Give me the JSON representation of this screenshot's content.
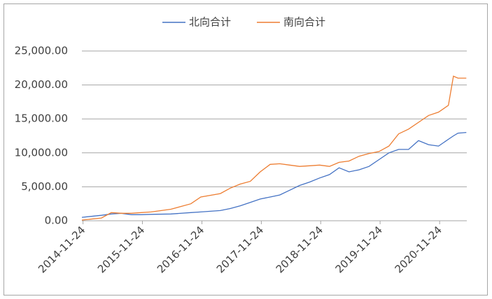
{
  "chart_data": {
    "type": "line",
    "x": [
      "2014-11-17",
      "2015-03-17",
      "2015-05-17",
      "2015-07-17",
      "2015-09-17",
      "2015-11-17",
      "2016-01-17",
      "2016-05-17",
      "2016-09-17",
      "2016-11-17",
      "2017-03-17",
      "2017-05-17",
      "2017-07-17",
      "2017-09-17",
      "2017-11-17",
      "2018-01-17",
      "2018-03-17",
      "2018-05-17",
      "2018-07-17",
      "2018-09-17",
      "2018-11-17",
      "2019-01-17",
      "2019-03-17",
      "2019-05-17",
      "2019-07-17",
      "2019-09-17",
      "2019-11-17",
      "2020-01-17",
      "2020-03-17",
      "2020-05-17",
      "2020-07-17",
      "2020-09-17",
      "2020-11-17",
      "2021-01-17",
      "2021-02-17",
      "2021-03-17",
      "2021-05-07"
    ],
    "series": [
      {
        "name": "北向合计",
        "color": "#4472c4",
        "values": [
          500,
          800,
          1000,
          1100,
          900,
          900,
          950,
          1000,
          1200,
          1300,
          1500,
          1800,
          2200,
          2700,
          3200,
          3500,
          3800,
          4500,
          5200,
          5700,
          6300,
          6800,
          7800,
          7200,
          7500,
          8000,
          9000,
          10000,
          10500,
          10500,
          11800,
          11200,
          11000,
          12000,
          12500,
          12900,
          13000
        ]
      },
      {
        "name": "南向合计",
        "color": "#ed7d31",
        "values": [
          100,
          400,
          1200,
          1100,
          1100,
          1200,
          1300,
          1700,
          2500,
          3500,
          4000,
          4800,
          5400,
          5800,
          7200,
          8300,
          8400,
          8200,
          8000,
          8100,
          8200,
          8000,
          8600,
          8800,
          9500,
          9900,
          10200,
          11000,
          12800,
          13500,
          14500,
          15500,
          16000,
          17000,
          21300,
          21000,
          21000
        ]
      }
    ],
    "xlim": [
      "2014-11-17",
      "2021-05-10"
    ],
    "xticks": [
      "2014-11-24",
      "2015-11-24",
      "2016-11-24",
      "2017-11-24",
      "2018-11-24",
      "2019-11-24",
      "2020-11-24"
    ],
    "ylim": [
      0,
      25000
    ],
    "yticks": [
      {
        "value": 0,
        "label": "0.00"
      },
      {
        "value": 5000,
        "label": "5,000.00"
      },
      {
        "value": 10000,
        "label": "10,000.00"
      },
      {
        "value": 15000,
        "label": "15,000.00"
      },
      {
        "value": 20000,
        "label": "20,000.00"
      },
      {
        "value": 25000,
        "label": "25,000.00"
      }
    ],
    "grid": true,
    "legend": "top"
  }
}
